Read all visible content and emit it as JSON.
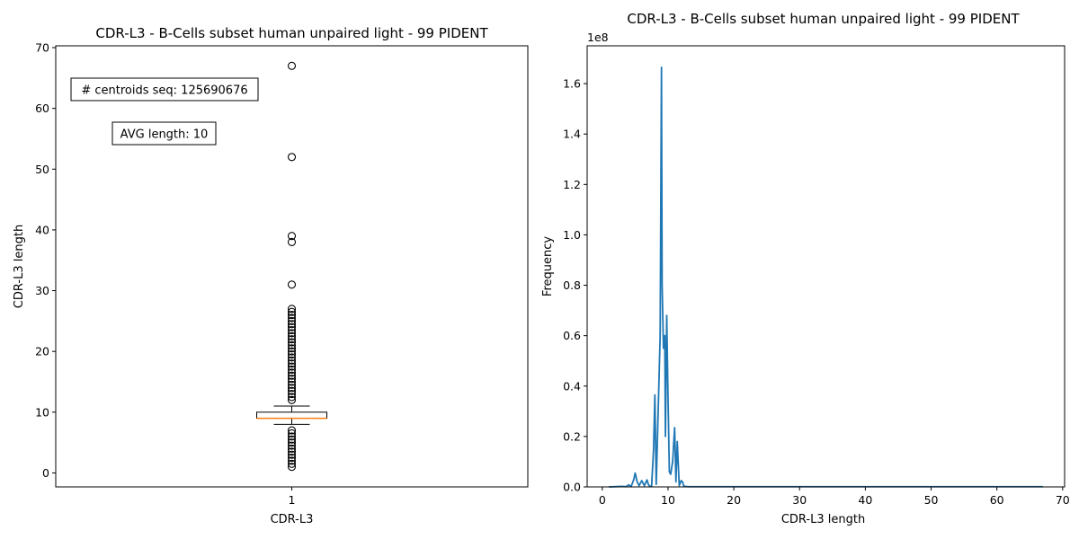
{
  "chart_data": [
    {
      "type": "box",
      "title": "CDR-L3 - B-Cells subset human unpaired light - 99 PIDENT",
      "xlabel": "CDR-L3",
      "ylabel": "CDR-L3 length",
      "categories": [
        "1"
      ],
      "ylim": [
        -2.3,
        70.3
      ],
      "yticks": [
        0,
        10,
        20,
        30,
        40,
        50,
        60,
        70
      ],
      "box": {
        "whisker_low": 8,
        "q1": 9,
        "median": 9,
        "q3": 10,
        "whisker_high": 11
      },
      "outliers": [
        1,
        1.5,
        2,
        2.5,
        3,
        3.5,
        4,
        4.5,
        5,
        5.5,
        6,
        6.5,
        7,
        12,
        12.5,
        13,
        13.5,
        14,
        14.5,
        15,
        15.5,
        16,
        16.5,
        17,
        17.5,
        18,
        18.5,
        19,
        19.5,
        20,
        20.5,
        21,
        21.5,
        22,
        22.5,
        23,
        23.5,
        24,
        24.5,
        25,
        25.5,
        26,
        26.5,
        27,
        31,
        38,
        39,
        52,
        67
      ],
      "annotations": [
        {
          "label": "# centroids seq: 125690676"
        },
        {
          "label": "AVG length: 10"
        }
      ],
      "colors": {
        "median": "#ff7f0e",
        "box": "#000000"
      }
    },
    {
      "type": "line",
      "title": "CDR-L3 - B-Cells subset human unpaired light - 99 PIDENT",
      "xlabel": "CDR-L3 length",
      "ylabel": "Frequency",
      "offset_text": "1e8",
      "xlim": [
        -2.3,
        70.3
      ],
      "ylim": [
        0,
        1.75
      ],
      "xticks": [
        0,
        10,
        20,
        30,
        40,
        50,
        60,
        70
      ],
      "yticks": [
        0.0,
        0.2,
        0.4,
        0.6,
        0.8,
        1.0,
        1.2,
        1.4,
        1.6
      ],
      "series": [
        {
          "color": "#1f77b4",
          "x": [
            1,
            3,
            3.6,
            4,
            4.4,
            4.8,
            5,
            5.3,
            5.6,
            6,
            6.4,
            6.8,
            7,
            7.2,
            7.5,
            7.8,
            8,
            8.2,
            8.5,
            8.8,
            9,
            9.1,
            9.3,
            9.5,
            9.6,
            9.8,
            10,
            10.2,
            10.4,
            10.7,
            11,
            11.2,
            11.4,
            11.7,
            12,
            12.2,
            12.4,
            13,
            14,
            67
          ],
          "y": [
            0,
            0.002,
            0.001,
            0.008,
            0.002,
            0.03,
            0.055,
            0.02,
            0.005,
            0.025,
            0.005,
            0.028,
            0.01,
            0.003,
            0.002,
            0.15,
            0.365,
            0.01,
            0.3,
            0.6,
            1.665,
            0.8,
            0.55,
            0.6,
            0.2,
            0.68,
            0.35,
            0.06,
            0.05,
            0.1,
            0.235,
            0.02,
            0.18,
            0.005,
            0.025,
            0.02,
            0.003,
            0.001,
            0.001,
            0.001
          ]
        }
      ]
    }
  ]
}
